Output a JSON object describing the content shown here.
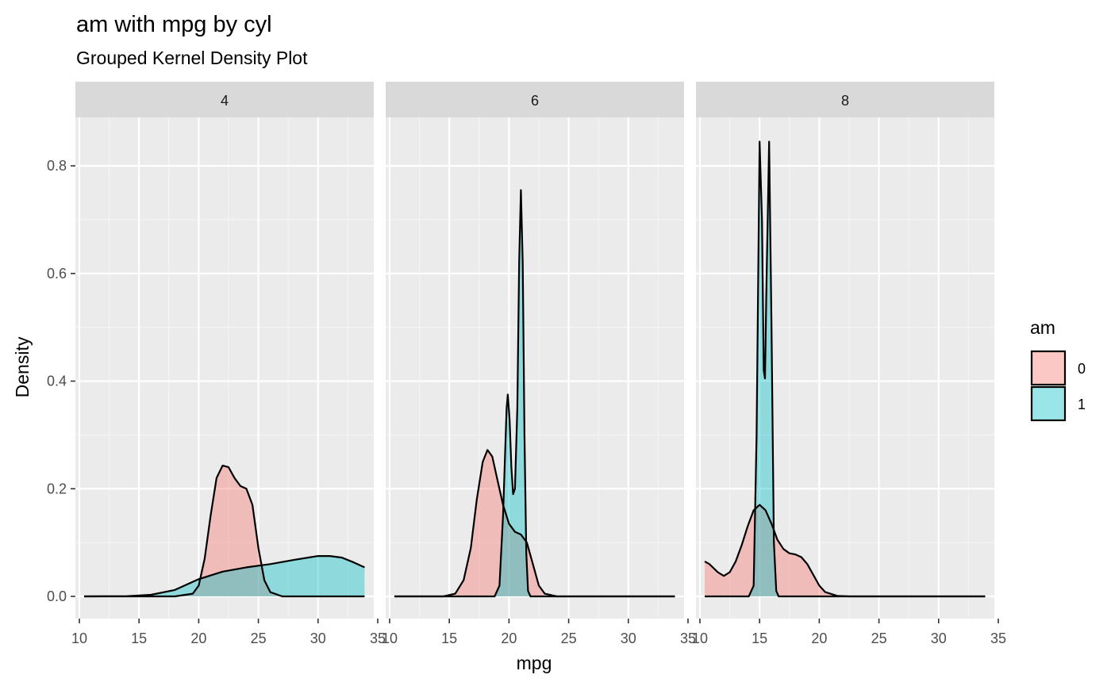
{
  "chart_data": {
    "type": "area",
    "title": "am with mpg by cyl",
    "subtitle": "Grouped Kernel Density Plot",
    "xlabel": "mpg",
    "ylabel": "Density",
    "xlim": [
      10.4,
      33.9
    ],
    "ylim": [
      0,
      0.85
    ],
    "x_ticks": [
      10,
      15,
      20,
      25,
      30,
      35
    ],
    "y_ticks": [
      0.0,
      0.2,
      0.4,
      0.6,
      0.8
    ],
    "y_tick_labels": [
      "0.0",
      "0.2",
      "0.4",
      "0.6",
      "0.8"
    ],
    "grid": true,
    "legend": {
      "title": "am",
      "position": "right",
      "entries": [
        {
          "label": "0",
          "color": "#F8766D"
        },
        {
          "label": "1",
          "color": "#00BFC4"
        }
      ]
    },
    "facets": [
      {
        "label": "4",
        "series": [
          {
            "name": "0",
            "color": "#F8766D",
            "points": [
              [
                10.4,
                0
              ],
              [
                18,
                0
              ],
              [
                19.5,
                0.005
              ],
              [
                20,
                0.02
              ],
              [
                20.5,
                0.07
              ],
              [
                21,
                0.15
              ],
              [
                21.5,
                0.22
              ],
              [
                22,
                0.243
              ],
              [
                22.5,
                0.24
              ],
              [
                23,
                0.22
              ],
              [
                23.5,
                0.205
              ],
              [
                24,
                0.2
              ],
              [
                24.5,
                0.17
              ],
              [
                25,
                0.09
              ],
              [
                25.5,
                0.03
              ],
              [
                26,
                0.008
              ],
              [
                27,
                0
              ],
              [
                33.9,
                0
              ]
            ]
          },
          {
            "name": "1",
            "color": "#00BFC4",
            "points": [
              [
                10.4,
                0
              ],
              [
                14,
                0.0005
              ],
              [
                16,
                0.003
              ],
              [
                18,
                0.012
              ],
              [
                20,
                0.032
              ],
              [
                22,
                0.046
              ],
              [
                24,
                0.054
              ],
              [
                26,
                0.06
              ],
              [
                28,
                0.068
              ],
              [
                30,
                0.075
              ],
              [
                31,
                0.075
              ],
              [
                32,
                0.072
              ],
              [
                33,
                0.063
              ],
              [
                33.9,
                0.054
              ]
            ]
          }
        ]
      },
      {
        "label": "6",
        "series": [
          {
            "name": "0",
            "color": "#F8766D",
            "points": [
              [
                10.4,
                0
              ],
              [
                14.5,
                0
              ],
              [
                15.5,
                0.005
              ],
              [
                16.2,
                0.03
              ],
              [
                16.8,
                0.09
              ],
              [
                17.3,
                0.18
              ],
              [
                17.8,
                0.25
              ],
              [
                18.2,
                0.272
              ],
              [
                18.6,
                0.26
              ],
              [
                19,
                0.22
              ],
              [
                19.5,
                0.17
              ],
              [
                20,
                0.135
              ],
              [
                20.5,
                0.12
              ],
              [
                21,
                0.115
              ],
              [
                21.5,
                0.1
              ],
              [
                22,
                0.06
              ],
              [
                22.5,
                0.02
              ],
              [
                23,
                0.005
              ],
              [
                24,
                0
              ],
              [
                33.9,
                0
              ]
            ]
          },
          {
            "name": "1",
            "color": "#00BFC4",
            "points": [
              [
                10.4,
                0
              ],
              [
                18.8,
                0
              ],
              [
                19.2,
                0.02
              ],
              [
                19.5,
                0.15
              ],
              [
                19.8,
                0.35
              ],
              [
                19.9,
                0.375
              ],
              [
                20.05,
                0.33
              ],
              [
                20.2,
                0.24
              ],
              [
                20.35,
                0.19
              ],
              [
                20.5,
                0.2
              ],
              [
                20.7,
                0.35
              ],
              [
                20.85,
                0.62
              ],
              [
                21,
                0.755
              ],
              [
                21.15,
                0.62
              ],
              [
                21.3,
                0.3
              ],
              [
                21.45,
                0.08
              ],
              [
                21.6,
                0.01
              ],
              [
                21.8,
                0
              ],
              [
                33.9,
                0
              ]
            ]
          }
        ]
      },
      {
        "label": "8",
        "series": [
          {
            "name": "0",
            "color": "#F8766D",
            "points": [
              [
                10.4,
                0.065
              ],
              [
                10.8,
                0.06
              ],
              [
                11.5,
                0.045
              ],
              [
                12,
                0.038
              ],
              [
                12.5,
                0.045
              ],
              [
                13,
                0.065
              ],
              [
                13.5,
                0.095
              ],
              [
                14,
                0.13
              ],
              [
                14.5,
                0.16
              ],
              [
                15,
                0.17
              ],
              [
                15.5,
                0.16
              ],
              [
                16,
                0.135
              ],
              [
                16.5,
                0.105
              ],
              [
                17,
                0.088
              ],
              [
                17.5,
                0.08
              ],
              [
                18,
                0.078
              ],
              [
                18.5,
                0.073
              ],
              [
                19,
                0.06
              ],
              [
                19.5,
                0.04
              ],
              [
                20,
                0.02
              ],
              [
                20.5,
                0.008
              ],
              [
                21.5,
                0.001
              ],
              [
                22.5,
                0
              ],
              [
                33.9,
                0
              ]
            ]
          },
          {
            "name": "1",
            "color": "#00BFC4",
            "points": [
              [
                10.4,
                0
              ],
              [
                14.1,
                0
              ],
              [
                14.5,
                0.02
              ],
              [
                14.75,
                0.3
              ],
              [
                15,
                0.845
              ],
              [
                15.2,
                0.7
              ],
              [
                15.35,
                0.42
              ],
              [
                15.45,
                0.405
              ],
              [
                15.55,
                0.55
              ],
              [
                15.8,
                0.845
              ],
              [
                16,
                0.5
              ],
              [
                16.2,
                0.1
              ],
              [
                16.4,
                0.01
              ],
              [
                16.6,
                0
              ],
              [
                33.9,
                0
              ]
            ]
          }
        ]
      }
    ]
  }
}
